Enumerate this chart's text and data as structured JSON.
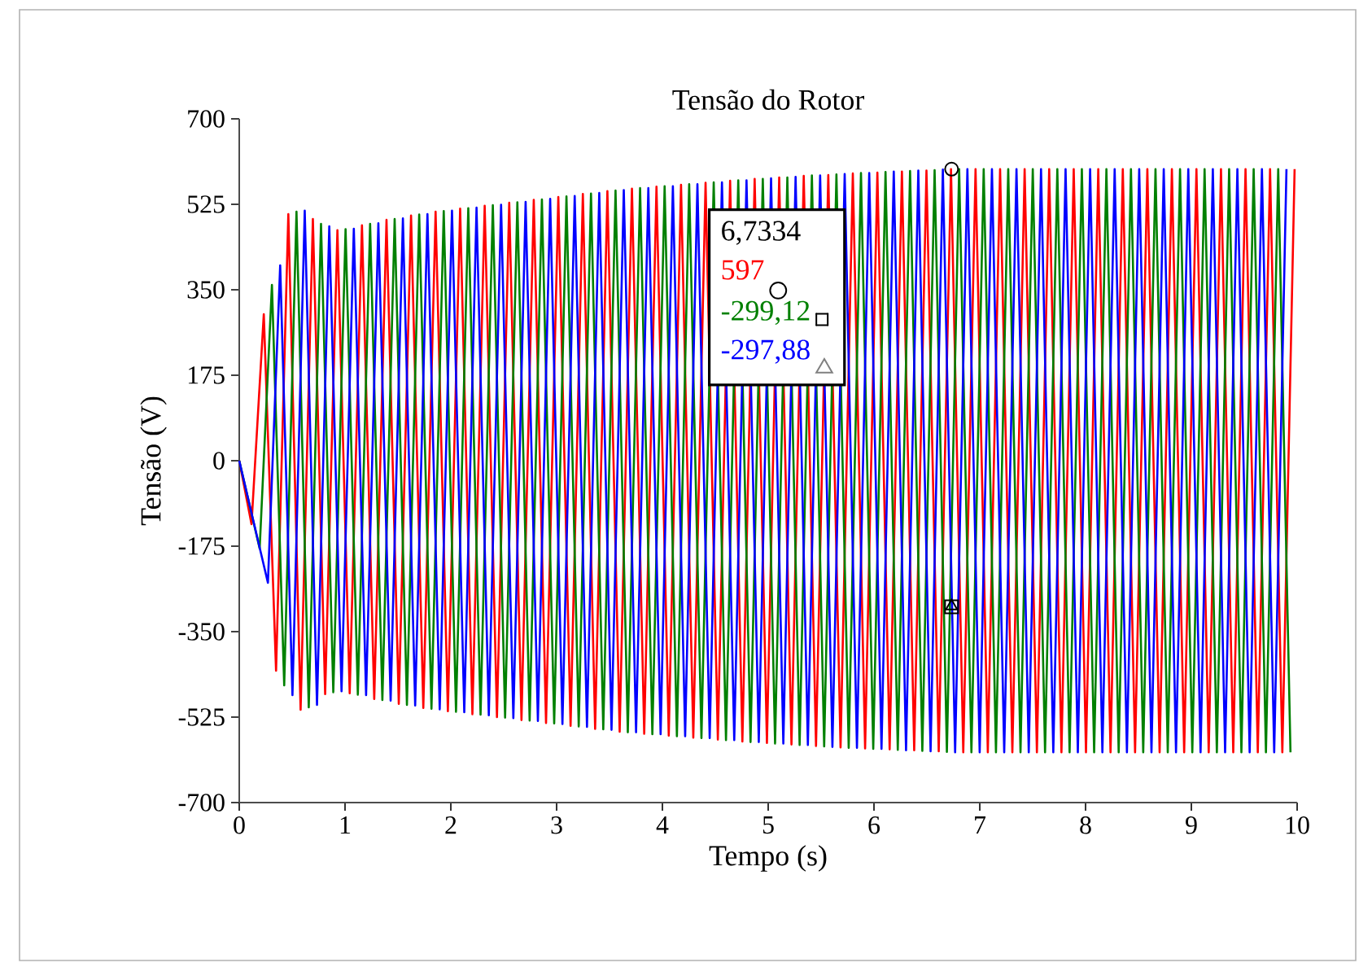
{
  "chart_data": {
    "type": "line",
    "title": "Tensão do Rotor",
    "xlabel": "Tempo (s)",
    "ylabel": "Tensão (V)",
    "xlim": [
      0,
      10
    ],
    "xticks": [
      0,
      1,
      2,
      3,
      4,
      5,
      6,
      7,
      8,
      9,
      10
    ],
    "ylim": [
      -700,
      700
    ],
    "yticks": [
      -700,
      -525,
      -350,
      -175,
      0,
      175,
      350,
      525,
      700
    ],
    "marker": "none",
    "line_style": "solid",
    "grid": false,
    "annotations": [
      "6,7334",
      "597",
      "-299,12",
      "-297,88"
    ],
    "series": [
      {
        "type": "scatter",
        "marker": "circle",
        "color": "#000000",
        "x": [
          6.7334
        ],
        "values": [
          597
        ]
      },
      {
        "type": "scatter",
        "marker": "square",
        "color": "#000000",
        "x": [
          6.7334
        ],
        "values": [
          -299.12
        ]
      },
      {
        "type": "scatter",
        "marker": "triangle",
        "color": "#000000",
        "x": [
          6.7334
        ],
        "values": [
          -297.88
        ]
      },
      {
        "color": "#ff0000",
        "x": [
          0,
          0.116,
          0.232,
          0.348,
          0.464,
          0.58,
          0.696,
          0.812,
          0.928,
          1.044,
          1.16,
          1.276,
          1.392,
          1.508,
          1.624,
          1.74,
          1.856,
          1.972,
          2.088,
          2.204,
          2.32,
          2.436,
          2.552,
          2.668,
          2.784,
          2.9,
          3.016,
          3.132,
          3.248,
          3.364,
          3.48,
          3.596,
          3.712,
          3.828,
          3.944,
          4.06,
          4.176,
          4.292,
          4.408,
          4.524,
          4.64,
          4.756,
          4.872,
          4.988,
          5.104,
          5.22,
          5.336,
          5.452,
          5.568,
          5.684,
          5.8,
          5.916,
          6.032,
          6.148,
          6.264,
          6.38,
          6.496,
          6.612,
          6.728,
          6.844,
          6.96,
          7.076,
          7.192,
          7.308,
          7.424,
          7.54,
          7.656,
          7.772,
          7.888,
          8.004,
          8.12,
          8.236,
          8.352,
          8.468,
          8.584,
          8.7,
          8.816,
          8.932,
          9.048,
          9.164,
          9.28,
          9.396,
          9.512,
          9.628,
          9.744,
          9.86,
          9.976
        ],
        "values": [
          0,
          -130,
          300,
          -430,
          505,
          -510,
          495,
          -478,
          472,
          -476,
          482,
          -488,
          493,
          -498,
          502,
          -506,
          510,
          -513,
          516,
          -519,
          522,
          -525,
          528,
          -531,
          534,
          -537,
          540,
          -543,
          546,
          -549,
          552,
          -555,
          557,
          -559,
          561,
          -563,
          565,
          -567,
          569,
          -571,
          573,
          -575,
          577,
          -578,
          580,
          -581,
          583,
          -584,
          585,
          -587,
          588,
          -589,
          590,
          -591,
          592,
          -593,
          594,
          -595,
          597,
          -597,
          597,
          -597,
          597,
          -597,
          597,
          -597,
          597,
          -597,
          597,
          -597,
          597,
          -597,
          597,
          -597,
          597,
          -597,
          597,
          -597,
          597,
          -597,
          597,
          -597,
          597,
          -597,
          597,
          -597,
          597
        ]
      },
      {
        "color": "#008000",
        "x": [
          0,
          0.193,
          0.309,
          0.425,
          0.541,
          0.657,
          0.773,
          0.889,
          1.005,
          1.121,
          1.237,
          1.353,
          1.469,
          1.585,
          1.701,
          1.817,
          1.933,
          2.049,
          2.165,
          2.281,
          2.397,
          2.513,
          2.629,
          2.745,
          2.861,
          2.977,
          3.093,
          3.209,
          3.325,
          3.441,
          3.557,
          3.673,
          3.789,
          3.905,
          4.021,
          4.137,
          4.253,
          4.369,
          4.485,
          4.601,
          4.717,
          4.833,
          4.949,
          5.065,
          5.181,
          5.297,
          5.413,
          5.529,
          5.645,
          5.761,
          5.877,
          5.993,
          6.109,
          6.225,
          6.341,
          6.457,
          6.573,
          6.689,
          6.805,
          6.921,
          7.037,
          7.153,
          7.269,
          7.385,
          7.501,
          7.617,
          7.733,
          7.849,
          7.965,
          8.081,
          8.197,
          8.313,
          8.429,
          8.545,
          8.661,
          8.777,
          8.893,
          9.009,
          9.125,
          9.241,
          9.357,
          9.473,
          9.589,
          9.705,
          9.821,
          9.937
        ],
        "values": [
          0,
          -180,
          360,
          -460,
          510,
          -505,
          485,
          -474,
          474,
          -479,
          485,
          -490,
          495,
          -500,
          504,
          -508,
          511,
          -514,
          517,
          -520,
          523,
          -526,
          529,
          -532,
          535,
          -538,
          541,
          -544,
          547,
          -550,
          553,
          -556,
          558,
          -560,
          562,
          -564,
          566,
          -568,
          570,
          -572,
          574,
          -576,
          577,
          -579,
          580,
          -582,
          584,
          -585,
          586,
          -588,
          589,
          -590,
          591,
          -592,
          593,
          -594,
          595,
          -596,
          597,
          -597,
          597,
          -597,
          597,
          -597,
          597,
          -597,
          597,
          -597,
          597,
          -597,
          597,
          -597,
          597,
          -597,
          597,
          -597,
          597,
          -597,
          597,
          -597,
          597,
          -597,
          597,
          -597,
          597,
          -597
        ]
      },
      {
        "color": "#0000ff",
        "x": [
          0,
          0.271,
          0.387,
          0.503,
          0.619,
          0.735,
          0.851,
          0.967,
          1.083,
          1.199,
          1.315,
          1.431,
          1.547,
          1.663,
          1.779,
          1.895,
          2.011,
          2.127,
          2.243,
          2.359,
          2.475,
          2.591,
          2.707,
          2.823,
          2.939,
          3.055,
          3.171,
          3.287,
          3.403,
          3.519,
          3.635,
          3.751,
          3.867,
          3.983,
          4.099,
          4.215,
          4.331,
          4.447,
          4.563,
          4.679,
          4.795,
          4.911,
          5.027,
          5.143,
          5.259,
          5.375,
          5.491,
          5.607,
          5.723,
          5.839,
          5.955,
          6.071,
          6.187,
          6.303,
          6.419,
          6.535,
          6.651,
          6.767,
          6.883,
          6.999,
          7.115,
          7.231,
          7.347,
          7.463,
          7.579,
          7.695,
          7.811,
          7.927,
          8.043,
          8.159,
          8.275,
          8.391,
          8.507,
          8.623,
          8.739,
          8.855,
          8.971,
          9.087,
          9.203,
          9.319,
          9.435,
          9.551,
          9.667,
          9.783,
          9.899
        ],
        "values": [
          0,
          -250,
          400,
          -480,
          512,
          -500,
          480,
          -472,
          475,
          -480,
          486,
          -491,
          496,
          -501,
          505,
          -509,
          512,
          -515,
          518,
          -521,
          524,
          -527,
          530,
          -533,
          536,
          -539,
          542,
          -545,
          548,
          -551,
          554,
          -556,
          558,
          -560,
          562,
          -564,
          566,
          -568,
          570,
          -572,
          574,
          -576,
          578,
          -579,
          581,
          -582,
          584,
          -586,
          587,
          -588,
          589,
          -590,
          592,
          -593,
          594,
          -595,
          596,
          -597,
          597,
          -597,
          597,
          -597,
          597,
          -597,
          597,
          -597,
          597,
          -597,
          597,
          -597,
          597,
          -597,
          597,
          -597,
          597,
          -597,
          597,
          -597,
          597,
          -597,
          597,
          -597,
          597,
          -597,
          597
        ]
      }
    ]
  }
}
